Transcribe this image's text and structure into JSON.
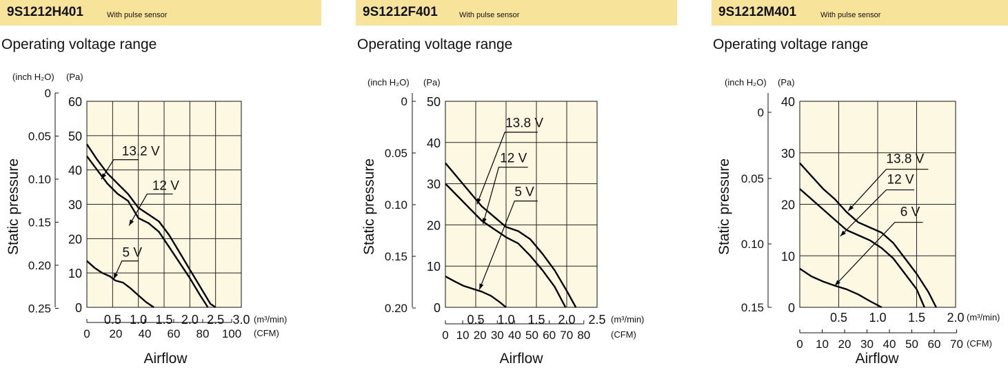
{
  "panels": [
    {
      "model": "9S1212H401",
      "sensor_label": "With pulse sensor",
      "subtitle": "Operating voltage range",
      "chart_data": {
        "type": "line",
        "xlabel": "Airflow",
        "ylabel": "Static pressure",
        "x_unit_primary": "(m³/min)",
        "x_unit_secondary": "(CFM)",
        "y_unit_primary": "(Pa)",
        "y_unit_secondary": "(inch H₂O)",
        "xlim": [
          0,
          3.0
        ],
        "ylim": [
          0,
          60
        ],
        "x_ticks": [
          "0.5",
          "1.0",
          "1.5",
          "2.0",
          "2.5",
          "3.0"
        ],
        "x_ticks_secondary": [
          "0",
          "20",
          "40",
          "60",
          "80",
          "100"
        ],
        "y_ticks": [
          "0",
          "10",
          "20",
          "30",
          "40",
          "50",
          "60"
        ],
        "y_ticks_secondary": [
          "0",
          "0.05",
          "0.10",
          "0.15",
          "0.20",
          "0.25"
        ],
        "grid": true,
        "series": [
          {
            "name": "13.2 V",
            "x": [
              0,
              0.2,
              0.4,
              0.6,
              0.8,
              1.0,
              1.2,
              1.4,
              1.6,
              1.8,
              2.0,
              2.2,
              2.4,
              2.5
            ],
            "y": [
              47.5,
              43,
              39,
              36,
              33,
              29,
              27,
              25,
              21,
              16,
              11,
              6,
              1,
              0
            ]
          },
          {
            "name": "12 V",
            "x": [
              0,
              0.2,
              0.4,
              0.6,
              0.8,
              1.0,
              1.2,
              1.4,
              1.6,
              1.8,
              2.0,
              2.2,
              2.35
            ],
            "y": [
              44,
              40,
              36,
              33,
              31,
              26,
              24.5,
              22,
              17.5,
              13,
              8.5,
              3.5,
              0
            ]
          },
          {
            "name": "5 V",
            "x": [
              0,
              0.15,
              0.3,
              0.45,
              0.55,
              0.7,
              0.85,
              1.0,
              1.15,
              1.3
            ],
            "y": [
              13.5,
              11.5,
              10,
              9,
              7.8,
              7.2,
              5.5,
              3.5,
              1.5,
              0
            ]
          }
        ]
      }
    },
    {
      "model": "9S1212F401",
      "sensor_label": "With pulse sensor",
      "subtitle": "Operating voltage range",
      "chart_data": {
        "type": "line",
        "xlabel": "Airflow",
        "ylabel": "Static pressure",
        "x_unit_primary": "(m³/min)",
        "x_unit_secondary": "(CFM)",
        "y_unit_primary": "(Pa)",
        "y_unit_secondary": "(inch H₂O)",
        "xlim": [
          0,
          2.5
        ],
        "ylim": [
          0,
          50
        ],
        "x_ticks": [
          "0.5",
          "1.0",
          "1.5",
          "2.0",
          "2.5"
        ],
        "x_ticks_secondary": [
          "0",
          "10",
          "20",
          "30",
          "40",
          "50",
          "60",
          "70",
          "80"
        ],
        "y_ticks": [
          "0",
          "10",
          "20",
          "30",
          "40",
          "50"
        ],
        "y_ticks_secondary": [
          "0",
          "0.05",
          "0.10",
          "0.15",
          "0.20"
        ],
        "grid": true,
        "series": [
          {
            "name": "13.8 V",
            "x": [
              0,
              0.2,
              0.4,
              0.6,
              0.8,
              1.0,
              1.2,
              1.4,
              1.6,
              1.8,
              2.0,
              2.15
            ],
            "y": [
              35,
              31.5,
              28,
              24.5,
              22,
              19.5,
              18.5,
              16.5,
              13,
              9,
              4,
              0
            ]
          },
          {
            "name": "12 V",
            "x": [
              0,
              0.2,
              0.4,
              0.6,
              0.8,
              1.0,
              1.2,
              1.4,
              1.6,
              1.8,
              1.98
            ],
            "y": [
              30,
              27,
              24,
              21,
              19,
              17,
              15.5,
              12.5,
              9,
              5,
              0
            ]
          },
          {
            "name": "5 V",
            "x": [
              0,
              0.15,
              0.3,
              0.45,
              0.6,
              0.75,
              0.9,
              1.0
            ],
            "y": [
              7.5,
              6.3,
              5.2,
              4.5,
              3.8,
              2.8,
              1.2,
              0
            ]
          }
        ]
      }
    },
    {
      "model": "9S1212M401",
      "sensor_label": "With pulse sensor",
      "subtitle": "Operating voltage range",
      "chart_data": {
        "type": "line",
        "xlabel": "Airflow",
        "ylabel": "Static pressure",
        "x_unit_primary": "(m³/min)",
        "x_unit_secondary": "(CFM)",
        "y_unit_primary": "(Pa)",
        "y_unit_secondary": "(inch H₂O)",
        "xlim": [
          0,
          2.0
        ],
        "ylim": [
          0,
          40
        ],
        "x_ticks": [
          "0.5",
          "1.0",
          "1.5",
          "2.0"
        ],
        "x_ticks_secondary": [
          "0",
          "10",
          "20",
          "30",
          "40",
          "50",
          "60",
          "70"
        ],
        "y_ticks": [
          "0",
          "10",
          "20",
          "30",
          "40"
        ],
        "y_ticks_secondary": [
          "0",
          "0.05",
          "0.10",
          "0.15"
        ],
        "grid": true,
        "series": [
          {
            "name": "13.8 V",
            "x": [
              0,
              0.15,
              0.3,
              0.45,
              0.6,
              0.75,
              0.9,
              1.05,
              1.2,
              1.35,
              1.5,
              1.65,
              1.75
            ],
            "y": [
              28,
              25.5,
              23,
              21,
              18.5,
              16.5,
              15.5,
              14.5,
              12.5,
              9.5,
              6.5,
              3,
              0
            ]
          },
          {
            "name": "12 V",
            "x": [
              0,
              0.15,
              0.3,
              0.45,
              0.6,
              0.75,
              0.9,
              1.05,
              1.2,
              1.35,
              1.5,
              1.6
            ],
            "y": [
              23,
              21,
              19,
              17,
              15,
              14,
              13,
              11.5,
              9.5,
              6.5,
              3.5,
              0
            ]
          },
          {
            "name": "6 V",
            "x": [
              0,
              0.15,
              0.3,
              0.45,
              0.6,
              0.75,
              0.9,
              1.05
            ],
            "y": [
              7.5,
              6,
              5,
              4.2,
              3.5,
              2.5,
              1.2,
              0
            ]
          }
        ]
      }
    }
  ]
}
